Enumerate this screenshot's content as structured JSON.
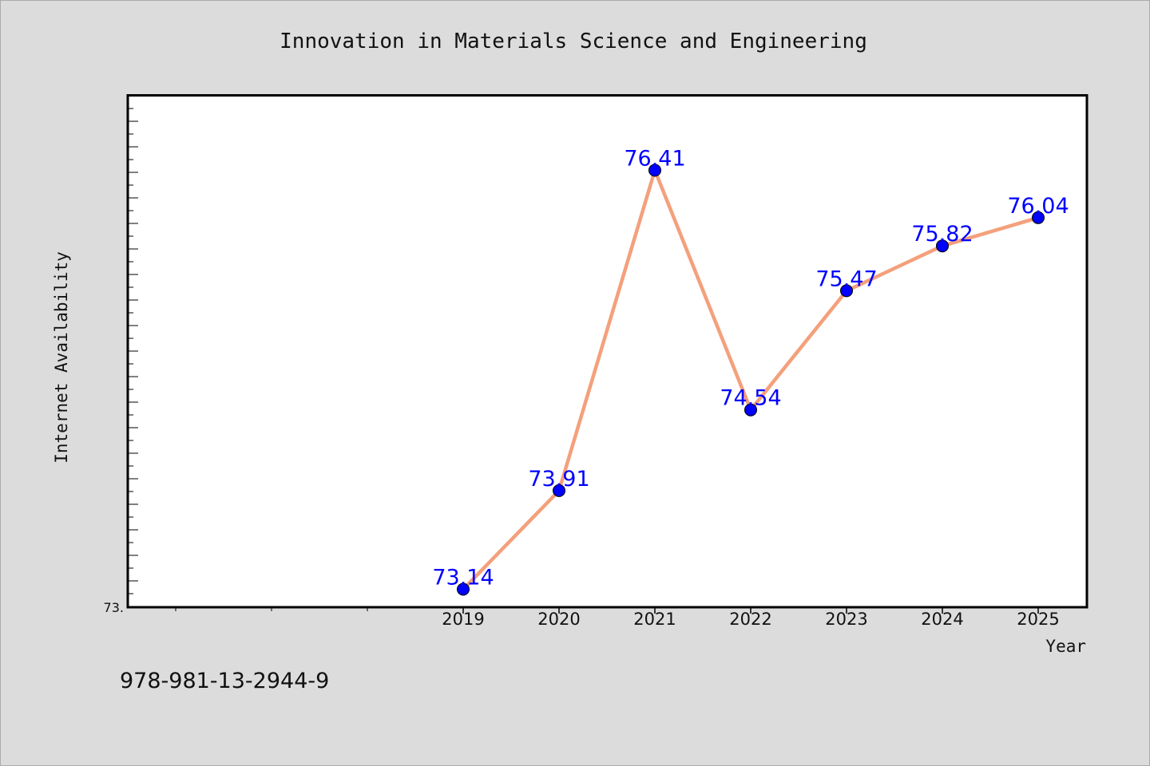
{
  "chart_data": {
    "type": "line",
    "title": "Innovation in Materials Science and Engineering",
    "xlabel": "Year",
    "ylabel": "Internet Availability",
    "categories": [
      "2019",
      "2020",
      "2021",
      "2022",
      "2023",
      "2024",
      "2025"
    ],
    "series": [
      {
        "values": [
          73.14,
          73.91,
          76.41,
          74.54,
          75.47,
          75.82,
          76.04
        ]
      }
    ],
    "data_labels": [
      "73.14",
      "73.91",
      "76.41",
      "74.54",
      "75.47",
      "75.82",
      "76.04"
    ],
    "y_tick_label": "73.",
    "ylim": [
      73.0,
      76.995
    ],
    "grid": false,
    "colors": {
      "line": "#f4a07c",
      "marker": "#0000ff",
      "label": "#0000ff",
      "plot_bg": "#ffffff",
      "figure_bg": "#dcdcdc"
    }
  },
  "footer_code": "978-981-13-2944-9"
}
